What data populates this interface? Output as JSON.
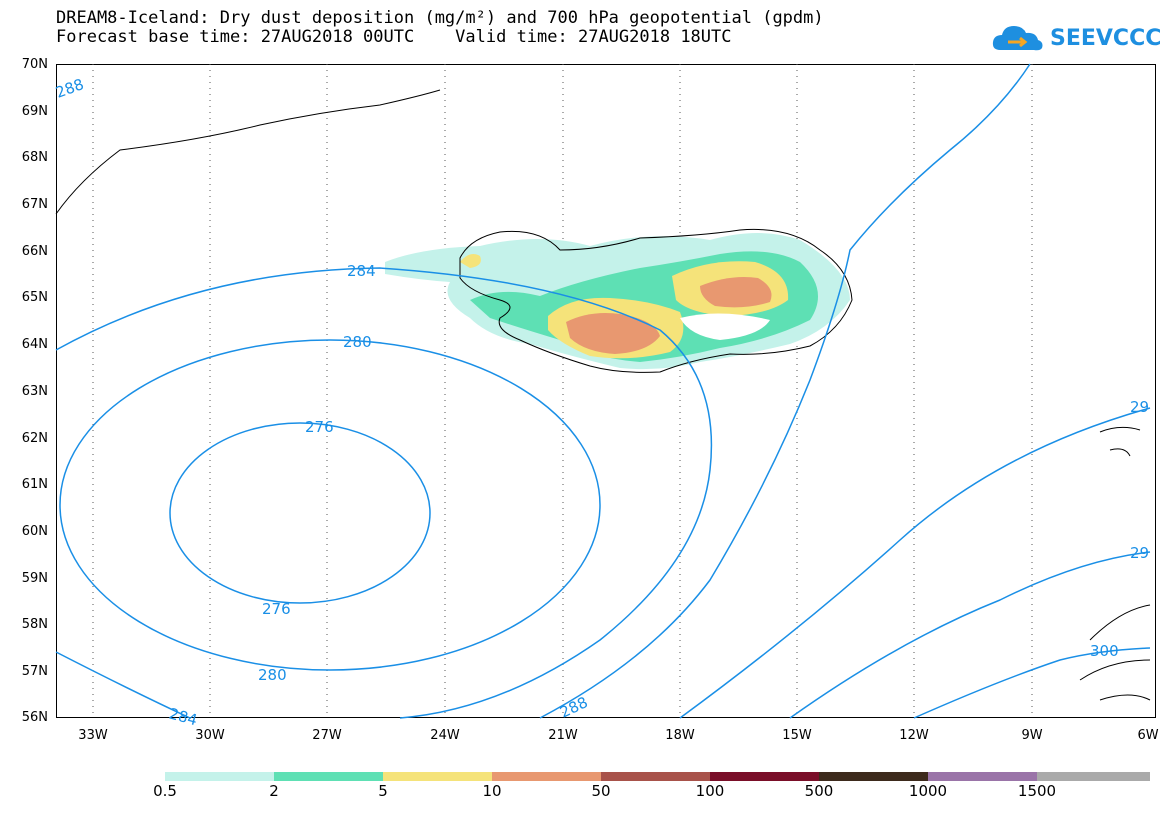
{
  "header": {
    "title_line1": "DREAM8-Iceland: Dry dust deposition (mg/m²) and 700 hPa geopotential (gpdm)",
    "title_line2": "Forecast base time: 27AUG2018 00UTC    Valid time: 27AUG2018 18UTC"
  },
  "logo": {
    "text": "SEEVCCC",
    "icon": "cloud-icon",
    "color": "#1e8fe0"
  },
  "map": {
    "lat_labels": [
      "70N",
      "69N",
      "68N",
      "67N",
      "66N",
      "65N",
      "64N",
      "63N",
      "62N",
      "61N",
      "60N",
      "59N",
      "58N",
      "57N",
      "56N"
    ],
    "lon_labels": [
      "33W",
      "30W",
      "27W",
      "24W",
      "21W",
      "18W",
      "15W",
      "12W",
      "9W",
      "6W"
    ],
    "contour_color": "#1a8fe6",
    "contour_labels": [
      "288",
      "284",
      "280",
      "276",
      "276",
      "280",
      "284",
      "288",
      "29",
      "29",
      "300"
    ]
  },
  "colorbar": {
    "labels": [
      "0.5",
      "2",
      "5",
      "10",
      "50",
      "100",
      "500",
      "1000",
      "1500"
    ],
    "colors": [
      "#c4f2ea",
      "#5ee0b4",
      "#f5e37a",
      "#e89870",
      "#a8524a",
      "#7a0e28",
      "#3d2a1c",
      "#9a74a8",
      "#aaaaaa"
    ]
  }
}
